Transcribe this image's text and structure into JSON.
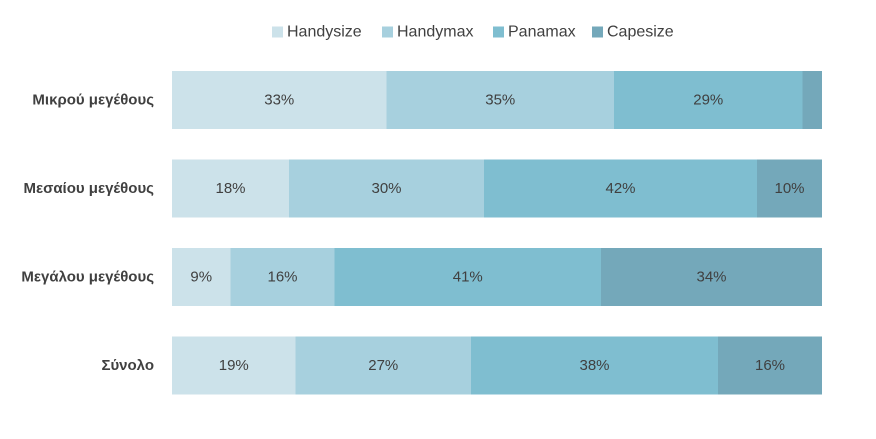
{
  "chart_data": {
    "type": "bar",
    "orientation": "horizontal",
    "stacked": "100%",
    "title": "",
    "xlabel": "",
    "ylabel": "",
    "xlim": [
      0,
      100
    ],
    "grid": false,
    "legend_position": "top",
    "categories": [
      "Μικρού μεγέθους",
      "Μεσαίου μεγέθους",
      "Μεγάλου μεγέθους",
      "Σύνολο"
    ],
    "series": [
      {
        "name": "Handysize",
        "color": "#cce2ea",
        "values": [
          33,
          18,
          9,
          19
        ],
        "labels": [
          "33%",
          "18%",
          "9%",
          "19%"
        ]
      },
      {
        "name": "Handymax",
        "color": "#a7d0de",
        "values": [
          35,
          30,
          16,
          27
        ],
        "labels": [
          "35%",
          "30%",
          "16%",
          "27%"
        ]
      },
      {
        "name": "Panamax",
        "color": "#7fbed0",
        "values": [
          29,
          42,
          41,
          38
        ],
        "labels": [
          "29%",
          "42%",
          "41%",
          "38%"
        ]
      },
      {
        "name": "Capesize",
        "color": "#74a8ba",
        "values": [
          3,
          10,
          34,
          16
        ],
        "labels": [
          "",
          "10%",
          "34%",
          "16%"
        ]
      }
    ]
  }
}
